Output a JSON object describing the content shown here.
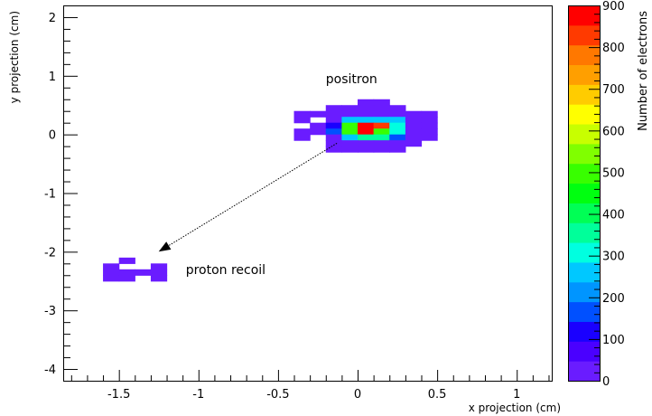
{
  "chart_data": {
    "type": "heatmap",
    "xlabel": "x projection (cm)",
    "ylabel": "y projection (cm)",
    "zlabel": "Number of electrons",
    "xlim": [
      -1.85,
      1.22
    ],
    "ylim": [
      -4.2,
      2.2
    ],
    "zlim": [
      0,
      900
    ],
    "x_ticks": [
      -1.5,
      -1,
      -0.5,
      0,
      0.5,
      1
    ],
    "x_tick_labels": [
      "-1.5",
      "-1",
      "-0.5",
      "0",
      "0.5",
      "1"
    ],
    "y_ticks": [
      -4,
      -3,
      -2,
      -1,
      0,
      1,
      2
    ],
    "y_tick_labels": [
      "-4",
      "-3",
      "-2",
      "-1",
      "0",
      "1",
      "2"
    ],
    "z_ticks": [
      0,
      100,
      200,
      300,
      400,
      500,
      600,
      700,
      800,
      900
    ],
    "z_tick_labels": [
      "0",
      "100",
      "200",
      "300",
      "400",
      "500",
      "600",
      "700",
      "800",
      "900"
    ],
    "grid": false,
    "annotations": [
      {
        "text": "positron",
        "x": -0.2,
        "y": 0.95
      },
      {
        "text": "proton recoil",
        "x": -1.08,
        "y": -2.3
      }
    ],
    "arrow": {
      "from": [
        -0.13,
        -0.15
      ],
      "to": [
        -1.25,
        -2.0
      ],
      "style": "dotted"
    },
    "cell_size": [
      0.1,
      0.1
    ],
    "cells": [
      {
        "x": -1.45,
        "y": -2.15,
        "z": 30
      },
      {
        "x": -1.55,
        "y": -2.25,
        "z": 30
      },
      {
        "x": -1.25,
        "y": -2.25,
        "z": 30
      },
      {
        "x": -1.55,
        "y": -2.35,
        "z": 30
      },
      {
        "x": -1.45,
        "y": -2.35,
        "z": 30
      },
      {
        "x": -1.35,
        "y": -2.35,
        "z": 30
      },
      {
        "x": -1.25,
        "y": -2.35,
        "z": 30
      },
      {
        "x": -1.55,
        "y": -2.45,
        "z": 30
      },
      {
        "x": -1.45,
        "y": -2.45,
        "z": 30
      },
      {
        "x": -1.25,
        "y": -2.45,
        "z": 30
      },
      {
        "x": 0.05,
        "y": 0.55,
        "z": 30
      },
      {
        "x": 0.15,
        "y": 0.55,
        "z": 30
      },
      {
        "x": -0.15,
        "y": 0.45,
        "z": 30
      },
      {
        "x": -0.05,
        "y": 0.45,
        "z": 30
      },
      {
        "x": 0.05,
        "y": 0.45,
        "z": 30
      },
      {
        "x": 0.15,
        "y": 0.45,
        "z": 30
      },
      {
        "x": 0.25,
        "y": 0.45,
        "z": 30
      },
      {
        "x": -0.35,
        "y": 0.35,
        "z": 30
      },
      {
        "x": -0.25,
        "y": 0.35,
        "z": 30
      },
      {
        "x": -0.15,
        "y": 0.35,
        "z": 30
      },
      {
        "x": -0.05,
        "y": 0.35,
        "z": 30
      },
      {
        "x": 0.05,
        "y": 0.35,
        "z": 30
      },
      {
        "x": 0.15,
        "y": 0.35,
        "z": 30
      },
      {
        "x": 0.25,
        "y": 0.35,
        "z": 30
      },
      {
        "x": 0.35,
        "y": 0.35,
        "z": 30
      },
      {
        "x": 0.45,
        "y": 0.35,
        "z": 30
      },
      {
        "x": -0.35,
        "y": 0.25,
        "z": 30
      },
      {
        "x": -0.15,
        "y": 0.25,
        "z": 30
      },
      {
        "x": -0.05,
        "y": 0.25,
        "z": 250
      },
      {
        "x": 0.05,
        "y": 0.25,
        "z": 250
      },
      {
        "x": 0.15,
        "y": 0.25,
        "z": 250
      },
      {
        "x": 0.25,
        "y": 0.25,
        "z": 250
      },
      {
        "x": 0.35,
        "y": 0.25,
        "z": 30
      },
      {
        "x": 0.45,
        "y": 0.25,
        "z": 30
      },
      {
        "x": -0.25,
        "y": 0.15,
        "z": 30
      },
      {
        "x": -0.15,
        "y": 0.15,
        "z": 130
      },
      {
        "x": -0.05,
        "y": 0.15,
        "z": 480
      },
      {
        "x": 0.05,
        "y": 0.15,
        "z": 870
      },
      {
        "x": 0.15,
        "y": 0.15,
        "z": 820
      },
      {
        "x": 0.25,
        "y": 0.15,
        "z": 310
      },
      {
        "x": 0.35,
        "y": 0.15,
        "z": 30
      },
      {
        "x": 0.45,
        "y": 0.15,
        "z": 30
      },
      {
        "x": -0.35,
        "y": 0.05,
        "z": 30
      },
      {
        "x": -0.25,
        "y": 0.05,
        "z": 30
      },
      {
        "x": -0.15,
        "y": 0.05,
        "z": 160
      },
      {
        "x": -0.05,
        "y": 0.05,
        "z": 480
      },
      {
        "x": 0.05,
        "y": 0.05,
        "z": 880
      },
      {
        "x": 0.15,
        "y": 0.05,
        "z": 520
      },
      {
        "x": 0.25,
        "y": 0.05,
        "z": 320
      },
      {
        "x": 0.35,
        "y": 0.05,
        "z": 30
      },
      {
        "x": 0.45,
        "y": 0.05,
        "z": 30
      },
      {
        "x": -0.35,
        "y": -0.05,
        "z": 30
      },
      {
        "x": -0.15,
        "y": -0.05,
        "z": 30
      },
      {
        "x": -0.05,
        "y": -0.05,
        "z": 250
      },
      {
        "x": 0.05,
        "y": -0.05,
        "z": 350
      },
      {
        "x": 0.15,
        "y": -0.05,
        "z": 350
      },
      {
        "x": 0.25,
        "y": -0.05,
        "z": 180
      },
      {
        "x": 0.35,
        "y": -0.05,
        "z": 30
      },
      {
        "x": 0.45,
        "y": -0.05,
        "z": 30
      },
      {
        "x": -0.15,
        "y": -0.15,
        "z": 30
      },
      {
        "x": -0.05,
        "y": -0.15,
        "z": 30
      },
      {
        "x": 0.05,
        "y": -0.15,
        "z": 30
      },
      {
        "x": 0.15,
        "y": -0.15,
        "z": 30
      },
      {
        "x": 0.25,
        "y": -0.15,
        "z": 30
      },
      {
        "x": 0.35,
        "y": -0.15,
        "z": 30
      },
      {
        "x": -0.15,
        "y": -0.25,
        "z": 30
      },
      {
        "x": -0.05,
        "y": -0.25,
        "z": 30
      },
      {
        "x": 0.05,
        "y": -0.25,
        "z": 30
      },
      {
        "x": 0.15,
        "y": -0.25,
        "z": 30
      },
      {
        "x": 0.25,
        "y": -0.25,
        "z": 30
      }
    ]
  },
  "palette": [
    "#6a1cff",
    "#4a00ff",
    "#1a00ff",
    "#0050ff",
    "#0095ff",
    "#00c8ff",
    "#00ffe0",
    "#00ff9a",
    "#00ff55",
    "#00ff10",
    "#38ff00",
    "#80ff00",
    "#c8ff00",
    "#ffff00",
    "#ffcc00",
    "#ff9f00",
    "#ff7800",
    "#ff3a00",
    "#ff0000"
  ]
}
